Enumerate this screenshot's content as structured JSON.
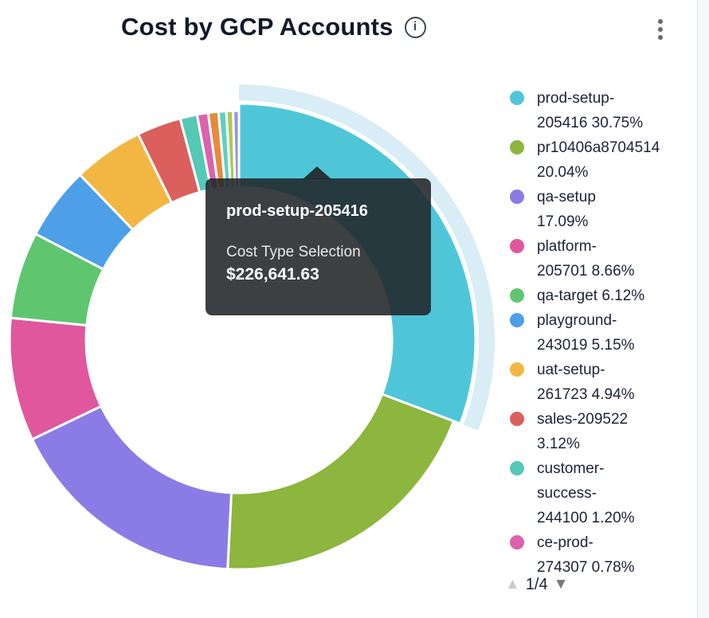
{
  "header": {
    "title": "Cost by GCP Accounts"
  },
  "icons": {
    "info": "i",
    "kebab": "vertical-dots",
    "page_up": "▲",
    "page_down": "▼"
  },
  "legend_pagination": {
    "page": "1/4"
  },
  "chart_data": {
    "type": "donut",
    "title": "Cost by GCP Accounts",
    "unit": "%",
    "legend_position": "right",
    "start_angle": "12-oclock-clockwise",
    "hover": {
      "slice": "prod-setup-205416",
      "halo_color": "#D8EDF5"
    },
    "series": [
      {
        "label": "prod-setup-205416",
        "pct": 30.75,
        "color": "#4FC6D8",
        "legend_lines": [
          "prod-setup-",
          "205416 30.75%"
        ]
      },
      {
        "label": "pr10406a8704514",
        "pct": 20.04,
        "color": "#8CB63E",
        "legend_lines": [
          "pr10406a8704514",
          "20.04%"
        ]
      },
      {
        "label": "qa-setup",
        "pct": 17.09,
        "color": "#8A7CE4",
        "legend_lines": [
          "qa-setup",
          "17.09%"
        ]
      },
      {
        "label": "platform-205701",
        "pct": 8.66,
        "color": "#E0579D",
        "legend_lines": [
          "platform-",
          "205701 8.66%"
        ]
      },
      {
        "label": "qa-target",
        "pct": 6.12,
        "color": "#5FC66F",
        "legend_lines": [
          "qa-target 6.12%"
        ]
      },
      {
        "label": "playground-243019",
        "pct": 5.15,
        "color": "#4D9FE8",
        "legend_lines": [
          "playground-",
          "243019 5.15%"
        ]
      },
      {
        "label": "uat-setup-261723",
        "pct": 4.94,
        "color": "#F2B742",
        "legend_lines": [
          "uat-setup-",
          "261723 4.94%"
        ]
      },
      {
        "label": "sales-209522",
        "pct": 3.12,
        "color": "#DB5F5C",
        "legend_lines": [
          "sales-209522",
          "3.12%"
        ]
      },
      {
        "label": "customer-success-244100",
        "pct": 1.2,
        "color": "#55C8B6",
        "legend_lines": [
          "customer-",
          "success-",
          "244100 1.20%"
        ]
      },
      {
        "label": "ce-prod-274307",
        "pct": 0.78,
        "color": "#DB62AE",
        "legend_lines": [
          "ce-prod-",
          "274307 0.78%"
        ]
      }
    ],
    "unlabeled_slices": [
      {
        "pct": 0.72,
        "color": "#E78A3E"
      },
      {
        "pct": 0.55,
        "color": "#5ED0C4"
      },
      {
        "pct": 0.47,
        "color": "#A9CB52"
      },
      {
        "pct": 0.41,
        "color": "#A18FE2"
      }
    ],
    "tooltip": {
      "title": "prod-setup-205416",
      "label": "Cost Type Selection",
      "value": "$226,641.63"
    }
  }
}
